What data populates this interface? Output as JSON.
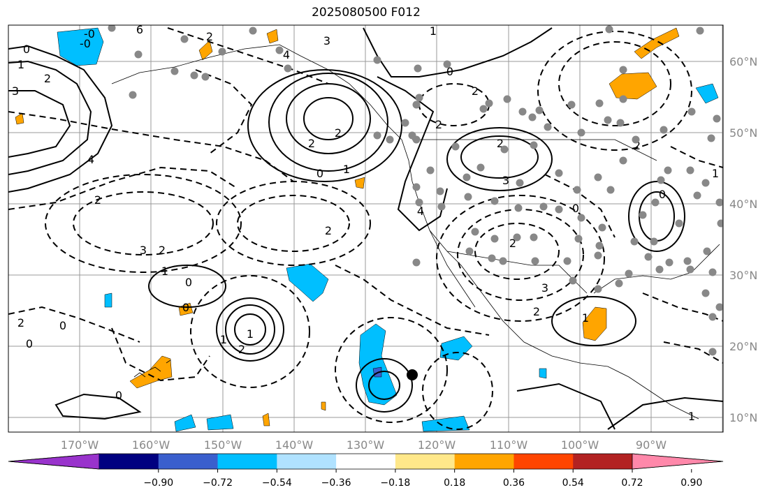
{
  "title": "2025080500 F012",
  "lon_ticks": [
    "170°W",
    "160°W",
    "150°W",
    "140°W",
    "130°W",
    "120°W",
    "110°W",
    "100°W",
    "90°W"
  ],
  "lat_ticks": [
    "60°N",
    "50°N",
    "40°N",
    "30°N",
    "20°N",
    "10°N"
  ],
  "colorbar": {
    "levels": [
      "−0.90",
      "−0.72",
      "−0.54",
      "−0.36",
      "−0.18",
      "0.18",
      "0.36",
      "0.54",
      "0.72",
      "0.90"
    ],
    "colors": [
      "#9933cc",
      "#000080",
      "#3a5fcd",
      "#00bfff",
      "#b0e2ff",
      "#ffffff",
      "#ffe88a",
      "#ffa500",
      "#ff4500",
      "#b22222",
      "#ff88aa"
    ]
  },
  "colors": {
    "gridline": "#999999",
    "station_dot": "#888888",
    "contour": "#000000",
    "positive_fill": "#ffa500",
    "negative_fill": "#00bfff",
    "negative_strong_fill": "#3a5fcd"
  },
  "contour_labels": [
    "-0",
    "-0",
    "0",
    "1",
    "2",
    "3",
    "4",
    "6",
    "2",
    "3",
    "4",
    "0",
    "1",
    "2",
    "2",
    "2",
    "3",
    "2",
    "1",
    "0",
    "0",
    "1",
    "2",
    "1",
    "0",
    "0",
    "2",
    "2",
    "1",
    "0",
    "2",
    "2",
    "2",
    "3",
    "4",
    "2",
    "3",
    "2",
    "1",
    "0",
    "2",
    "0",
    "1",
    "1",
    "0"
  ]
}
